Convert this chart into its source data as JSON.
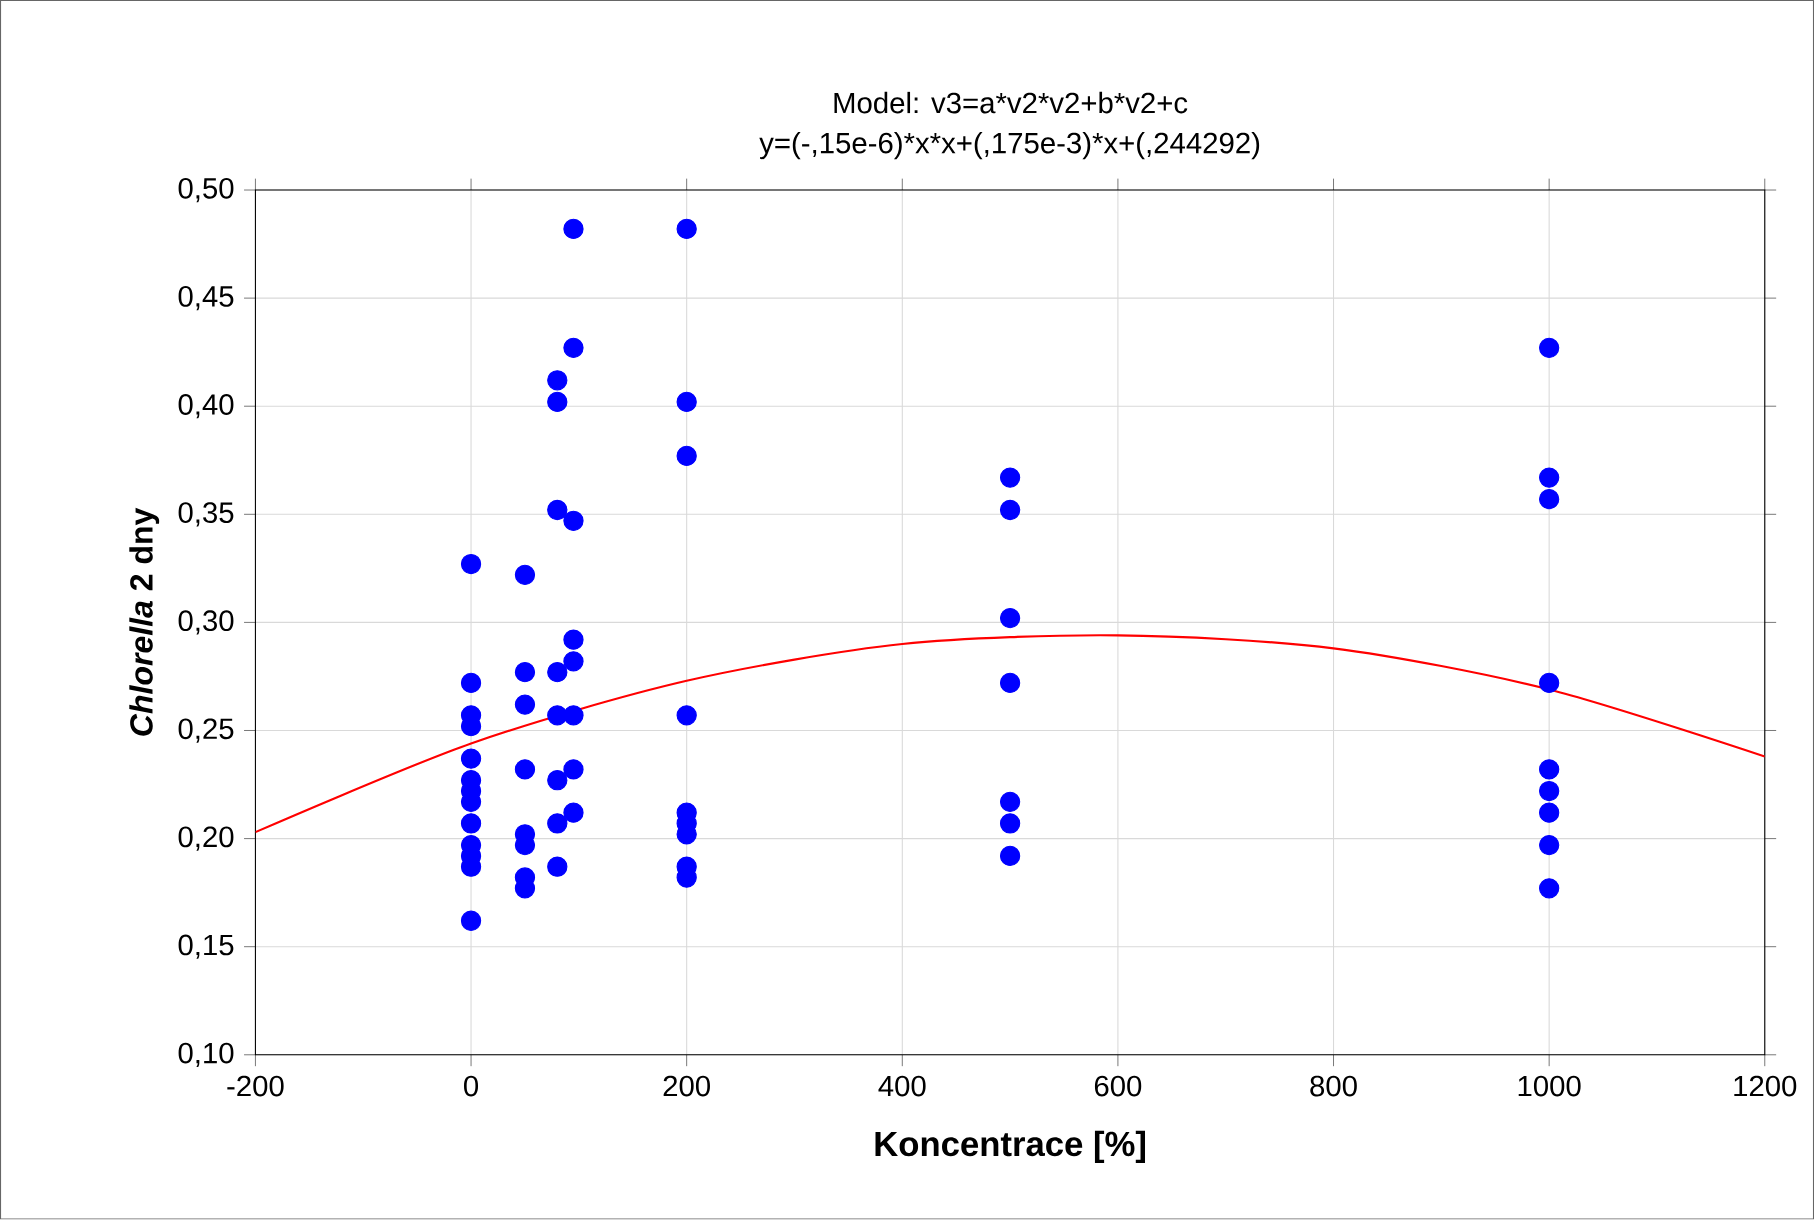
{
  "chart_data": {
    "type": "scatter",
    "title": "Model: v3=a*v2*v2+b*v2+c",
    "subtitle": "y=(-,15e-6)*x*x+(,175e-3)*x+(,244292)",
    "xlabel": "Koncentrace [%]",
    "ylabel": "*Chlorella* 2 dny",
    "xlim": [
      -200,
      1200
    ],
    "xticks": [
      -200,
      0,
      200,
      400,
      600,
      800,
      1000,
      1200
    ],
    "ylim": [
      0.1,
      0.5
    ],
    "yticks": [
      {
        "value": 0.1,
        "label": "0,10"
      },
      {
        "value": 0.15,
        "label": "0,15"
      },
      {
        "value": 0.2,
        "label": "0,20"
      },
      {
        "value": 0.25,
        "label": "0,25"
      },
      {
        "value": 0.3,
        "label": "0,30"
      },
      {
        "value": 0.35,
        "label": "0,35"
      },
      {
        "value": 0.4,
        "label": "0,40"
      },
      {
        "value": 0.45,
        "label": "0,45"
      },
      {
        "value": 0.5,
        "label": "0,50"
      }
    ],
    "grid": true,
    "series": [
      {
        "marker": "circle",
        "color": "#0000ff",
        "x": [
          0,
          0,
          0,
          0,
          0,
          0,
          0,
          0,
          0,
          0,
          0,
          0,
          0,
          50,
          50,
          50,
          50,
          50,
          50,
          50,
          50,
          80,
          80,
          80,
          80,
          80,
          80,
          80,
          80,
          95,
          95,
          95,
          95,
          95,
          95,
          95,
          95,
          200,
          200,
          200,
          200,
          200,
          200,
          200,
          200,
          200,
          500,
          500,
          500,
          500,
          500,
          500,
          500,
          1000,
          1000,
          1000,
          1000,
          1000,
          1000,
          1000,
          1000,
          1000
        ],
        "values": [
          0.327,
          0.272,
          0.257,
          0.252,
          0.237,
          0.227,
          0.222,
          0.217,
          0.207,
          0.197,
          0.192,
          0.187,
          0.162,
          0.322,
          0.277,
          0.262,
          0.232,
          0.202,
          0.197,
          0.182,
          0.177,
          0.412,
          0.402,
          0.352,
          0.277,
          0.257,
          0.227,
          0.207,
          0.187,
          0.482,
          0.427,
          0.347,
          0.292,
          0.282,
          0.257,
          0.232,
          0.212,
          0.482,
          0.402,
          0.377,
          0.257,
          0.212,
          0.207,
          0.202,
          0.187,
          0.182,
          0.367,
          0.352,
          0.302,
          0.272,
          0.217,
          0.207,
          0.192,
          0.427,
          0.367,
          0.357,
          0.272,
          0.232,
          0.222,
          0.212,
          0.197,
          0.177
        ]
      },
      {
        "type": "line",
        "marker": "none",
        "color": "#ff0000",
        "x": [
          -200,
          0,
          200,
          400,
          600,
          800,
          1000,
          1200
        ],
        "values": [
          0.203,
          0.244,
          0.273,
          0.29,
          0.294,
          0.288,
          0.269,
          0.238
        ]
      }
    ]
  }
}
